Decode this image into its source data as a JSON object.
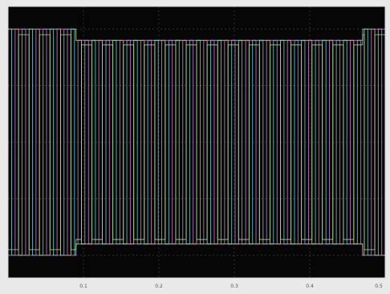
{
  "chart_data": {
    "type": "line",
    "title": "",
    "xlabel": "",
    "ylabel": "",
    "xlim": [
      0,
      1
    ],
    "ylim": [
      -1.2,
      1.2
    ],
    "grid": true,
    "legend": "none",
    "x_ticks": [
      "0.1",
      "0.2",
      "0.3",
      "0.4",
      "0.5"
    ],
    "x_tick_positions": [
      0.2,
      0.4,
      0.6,
      0.8,
      1.0
    ],
    "y_grid_values": [
      -1.0,
      -0.5,
      0.0,
      0.5,
      1.0
    ],
    "colors": {
      "background": "#060606",
      "grid": "#3a3a3a",
      "frame": "#d8d8d8",
      "tick_text": "#555555"
    },
    "series": [
      {
        "color": "#e8e27a",
        "waveform": "square",
        "cycles": 18,
        "phase": 0.0,
        "segments": [
          {
            "x_start": 0.0,
            "x_end": 0.18,
            "amplitude": 1.0
          },
          {
            "x_start": 0.18,
            "x_end": 0.94,
            "amplitude": 0.9
          },
          {
            "x_start": 0.94,
            "x_end": 1.0,
            "amplitude": 1.0
          }
        ]
      },
      {
        "color": "#66d9e6",
        "waveform": "square",
        "cycles": 18,
        "phase": 0.333,
        "segments": [
          {
            "x_start": 0.0,
            "x_end": 0.18,
            "amplitude": 1.0
          },
          {
            "x_start": 0.18,
            "x_end": 0.94,
            "amplitude": 0.9
          },
          {
            "x_start": 0.94,
            "x_end": 1.0,
            "amplitude": 1.0
          }
        ]
      },
      {
        "color": "#e37be1",
        "waveform": "square",
        "cycles": 18,
        "phase": 0.667,
        "segments": [
          {
            "x_start": 0.0,
            "x_end": 0.18,
            "amplitude": 1.0
          },
          {
            "x_start": 0.18,
            "x_end": 0.94,
            "amplitude": 0.9
          },
          {
            "x_start": 0.94,
            "x_end": 1.0,
            "amplitude": 1.0
          }
        ]
      },
      {
        "color": "#9be08a",
        "waveform": "square",
        "cycles": 18,
        "phase": 0.5,
        "segments": [
          {
            "x_start": 0.0,
            "x_end": 0.18,
            "amplitude": 0.95
          },
          {
            "x_start": 0.18,
            "x_end": 0.94,
            "amplitude": 0.86
          },
          {
            "x_start": 0.94,
            "x_end": 1.0,
            "amplitude": 0.95
          }
        ]
      }
    ]
  }
}
